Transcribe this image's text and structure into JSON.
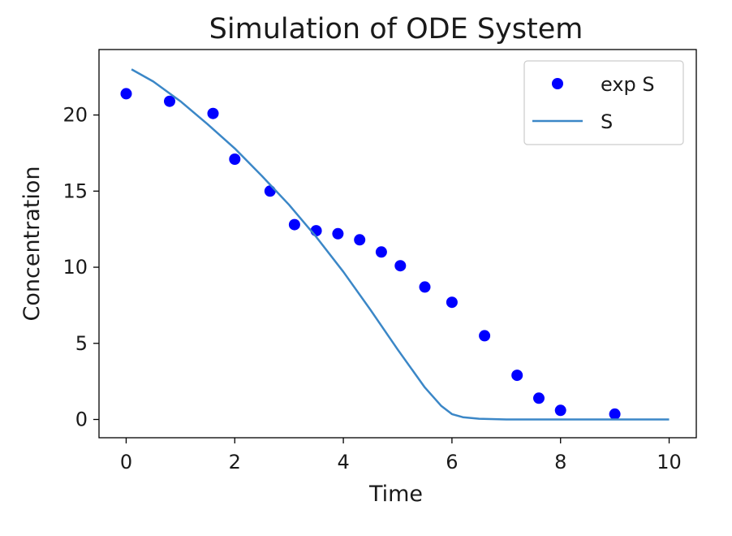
{
  "chart_data": {
    "type": "line",
    "title": "Simulation of ODE System",
    "xlabel": "Time",
    "ylabel": "Concentration",
    "xlim": [
      -0.5,
      10.5
    ],
    "ylim": [
      -1.2,
      24.3
    ],
    "xticks": [
      0,
      2,
      4,
      6,
      8,
      10
    ],
    "yticks": [
      0,
      5,
      10,
      15,
      20
    ],
    "grid": false,
    "legend": {
      "placement": "top-right"
    },
    "series": [
      {
        "name": "exp S",
        "kind": "scatter",
        "color": "#0000ff",
        "x": [
          0.0,
          0.8,
          1.6,
          2.0,
          2.65,
          3.1,
          3.5,
          3.9,
          4.3,
          4.7,
          5.05,
          5.5,
          6.0,
          6.6,
          7.2,
          7.6,
          8.0,
          9.0
        ],
        "y": [
          21.4,
          20.9,
          20.1,
          17.1,
          15.0,
          12.8,
          12.4,
          12.2,
          11.8,
          11.0,
          10.1,
          8.7,
          7.7,
          5.5,
          2.9,
          1.4,
          0.6,
          0.35
        ]
      },
      {
        "name": "S",
        "kind": "line",
        "color": "#3b87c7",
        "x": [
          0.1,
          0.5,
          1.0,
          1.5,
          2.0,
          2.5,
          3.0,
          3.5,
          4.0,
          4.5,
          5.0,
          5.5,
          5.8,
          6.0,
          6.2,
          6.5,
          7.0,
          8.0,
          9.0,
          10.0
        ],
        "y": [
          23.0,
          22.2,
          20.9,
          19.4,
          17.8,
          16.0,
          14.1,
          12.0,
          9.7,
          7.2,
          4.6,
          2.1,
          0.9,
          0.35,
          0.15,
          0.05,
          0.0,
          0.0,
          0.0,
          0.0
        ]
      }
    ]
  }
}
